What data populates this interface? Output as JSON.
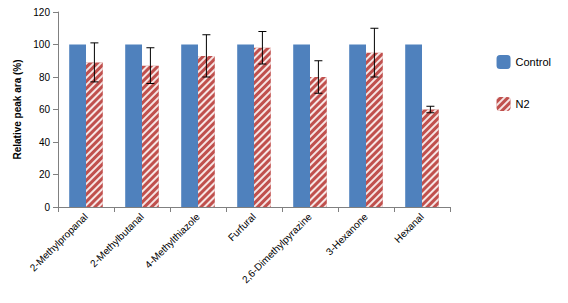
{
  "chart_data": {
    "type": "bar",
    "y_label": "Relative peak ara (%)",
    "categories": [
      "2-Methylpropanal",
      "2-Methylbutanal",
      "4-Methylthiazole",
      "Furfural",
      "2,6-Dimethylpyrazine",
      "3-Hexanone",
      "Hexanal"
    ],
    "series": [
      {
        "name": "Control",
        "color": "#4f81bd",
        "values": [
          100,
          100,
          100,
          100,
          100,
          100,
          100
        ]
      },
      {
        "name": "N2",
        "color": "#c0504d",
        "values": [
          89,
          87,
          93,
          98,
          80,
          95,
          60
        ],
        "errors": [
          12,
          11,
          13,
          10,
          10,
          15,
          2
        ]
      }
    ],
    "ylim": [
      0,
      120
    ],
    "yticks": [
      0,
      20,
      40,
      60,
      80,
      100,
      120
    ],
    "grid": false,
    "legend": "right"
  }
}
